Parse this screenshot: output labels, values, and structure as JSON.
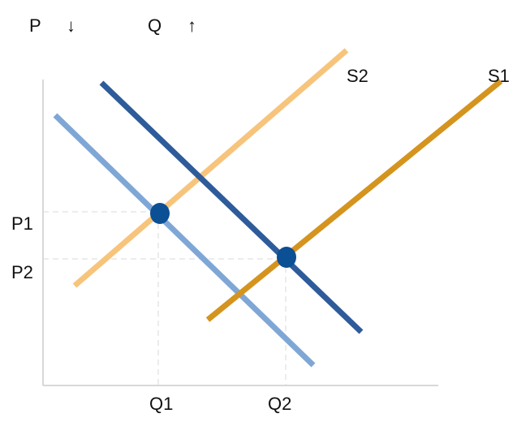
{
  "header": {
    "price_label": "P",
    "price_arrow": "↓",
    "quantity_label": "Q",
    "quantity_arrow": "↑"
  },
  "curves": {
    "supply_new": {
      "label": "S2",
      "color": "#f7c47c"
    },
    "supply_old": {
      "label": "S1",
      "color": "#d4941e"
    },
    "demand_old": {
      "color": "#7fa7d6"
    },
    "demand_new": {
      "color": "#2e5b9a"
    }
  },
  "equilibria": {
    "color": "#0b4f94",
    "price_labels": [
      "P1",
      "P2"
    ],
    "quantity_labels": [
      "Q1",
      "Q2"
    ]
  },
  "axis_color": "#cccccc"
}
